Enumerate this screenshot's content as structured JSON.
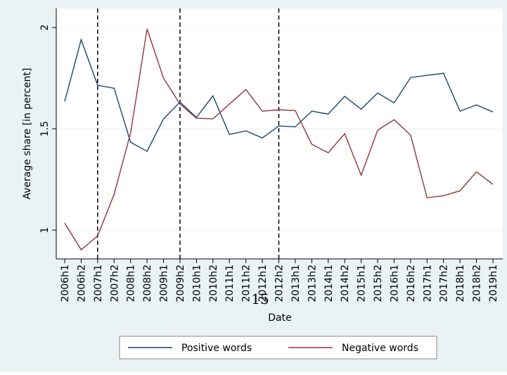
{
  "chart_data": {
    "type": "line",
    "xlabel": "Date",
    "ylabel": "Average share [in percent]",
    "categories": [
      "2006h1",
      "2006h2",
      "2007h1",
      "2007h2",
      "2008h1",
      "2008h2",
      "2009h1",
      "2009h2",
      "2010h1",
      "2010h2",
      "2011h1",
      "2011h2",
      "2012h1",
      "2012h2",
      "2013h1",
      "2013h2",
      "2014h1",
      "2014h2",
      "2015h1",
      "2015h2",
      "2016h1",
      "2016h2",
      "2017h1",
      "2017h2",
      "2018h1",
      "2018h2",
      "2019h1"
    ],
    "series": [
      {
        "name": "Positive words",
        "color": "#1a476f",
        "values": [
          1.635,
          1.94,
          1.715,
          1.7,
          1.434,
          1.389,
          1.549,
          1.632,
          1.556,
          1.663,
          1.472,
          1.49,
          1.455,
          1.514,
          1.51,
          1.587,
          1.573,
          1.66,
          1.597,
          1.677,
          1.628,
          1.753,
          1.764,
          1.774,
          1.587,
          1.618,
          1.583
        ]
      },
      {
        "name": "Negative words",
        "color": "#90353b",
        "values": [
          1.035,
          0.903,
          0.972,
          1.177,
          1.479,
          1.993,
          1.75,
          1.622,
          1.552,
          1.549,
          1.622,
          1.694,
          1.587,
          1.594,
          1.59,
          1.424,
          1.382,
          1.476,
          1.271,
          1.493,
          1.545,
          1.469,
          1.16,
          1.17,
          1.194,
          1.288,
          1.226
        ]
      }
    ],
    "vlines": [
      "2007h1",
      "2009h2",
      "2012h2"
    ],
    "ylim": [
      0.858,
      2.094
    ],
    "yticks": [
      1,
      1.5,
      2
    ],
    "grid": true,
    "legend": "bottom",
    "annotation": "15"
  }
}
